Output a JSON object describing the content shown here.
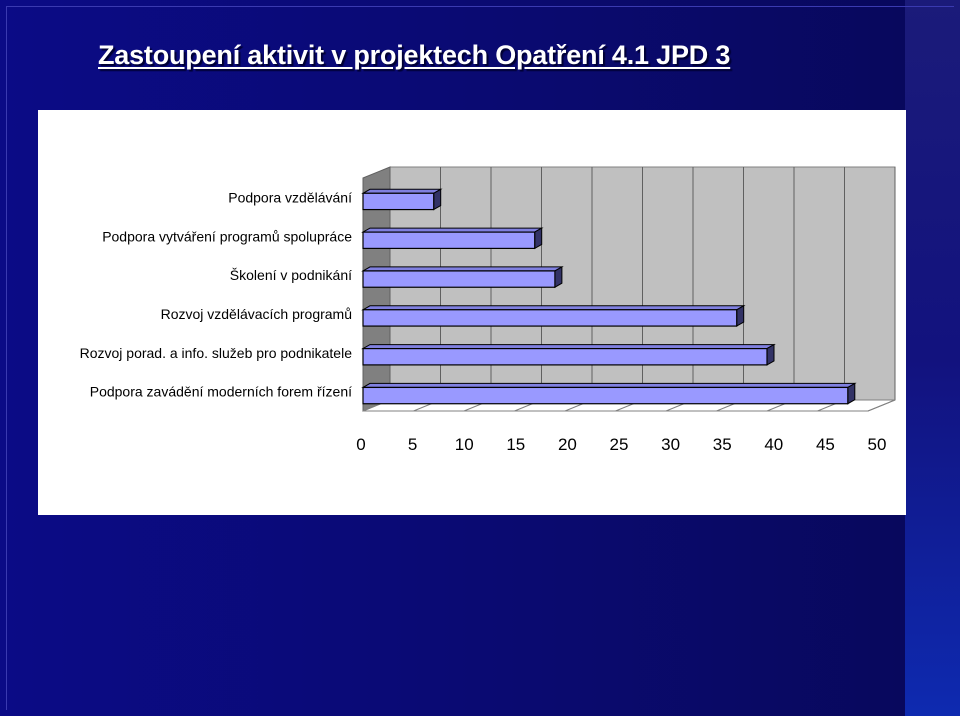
{
  "slide": {
    "title": "Zastoupení aktivit v  projektech Opatření 4.1 JPD 3"
  },
  "colors": {
    "background": "#0a0a70",
    "panel": "#ffffff",
    "plot_wall": "#c0c0c0",
    "bar_face": "#9999ff",
    "bar_top": "#8080e0",
    "bar_side": "#333366",
    "bar_edge": "#000000"
  },
  "chart_data": {
    "type": "bar",
    "orientation": "horizontal",
    "style": "3d",
    "categories": [
      "Podpora vzdělávání",
      "Podpora vytváření programů spolupráce",
      "Školení v podnikání",
      "Rozvoj vzdělávacích programů",
      "Rozvoj porad. a info. služeb pro podnikatele",
      "Podpora zavádění moderních forem řízení"
    ],
    "values": [
      7,
      17,
      19,
      37,
      40,
      48
    ],
    "xlim": [
      0,
      50
    ],
    "xticks": [
      "0",
      "5",
      "10",
      "15",
      "20",
      "25",
      "30",
      "35",
      "40",
      "45",
      "50"
    ],
    "grid": true,
    "legend": false
  }
}
